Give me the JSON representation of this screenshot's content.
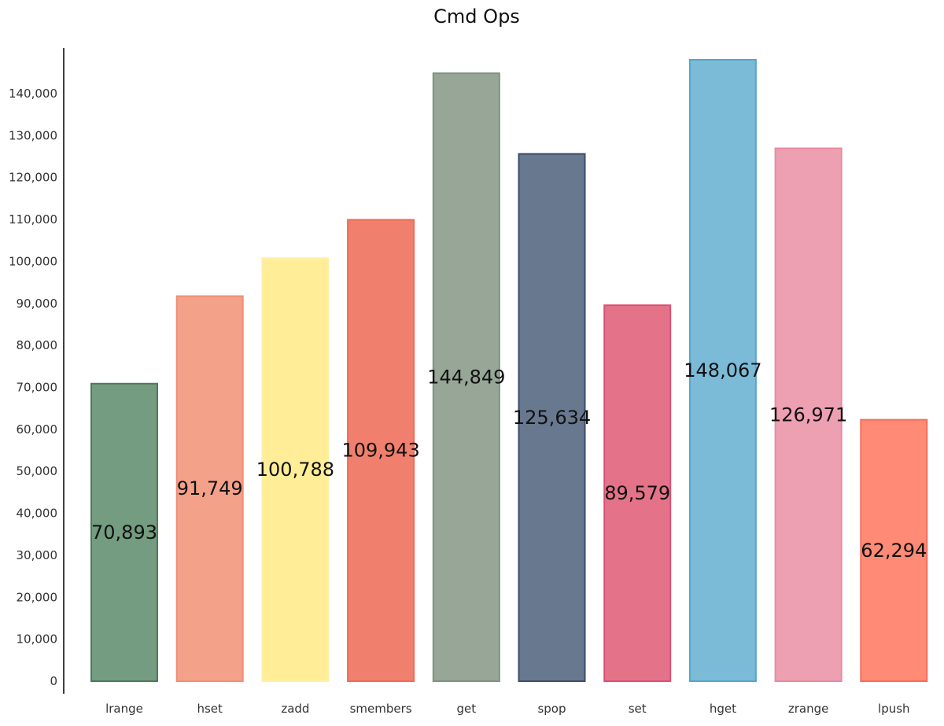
{
  "chart_data": {
    "type": "bar",
    "title": "Cmd Ops",
    "xlabel": "",
    "ylabel": "",
    "categories": [
      "lrange",
      "hset",
      "zadd",
      "smembers",
      "get",
      "spop",
      "set",
      "hget",
      "zrange",
      "lpush"
    ],
    "values": [
      70893,
      91749,
      100788,
      109943,
      144849,
      125634,
      89579,
      148067,
      126971,
      62294
    ],
    "value_labels": [
      "70,893",
      "91,749",
      "100,788",
      "109,943",
      "144,849",
      "125,634",
      "89,579",
      "148,067",
      "126,971",
      "62,294"
    ],
    "yticks": [
      0,
      10000,
      20000,
      30000,
      40000,
      50000,
      60000,
      70000,
      80000,
      90000,
      100000,
      110000,
      120000,
      130000,
      140000
    ],
    "ytick_labels": [
      "0",
      "10,000",
      "20,000",
      "30,000",
      "40,000",
      "50,000",
      "60,000",
      "70,000",
      "80,000",
      "90,000",
      "100,000",
      "110,000",
      "120,000",
      "130,000",
      "140,000"
    ],
    "ylim": [
      0,
      148067
    ],
    "grid": false,
    "legend": "none",
    "colors": [
      "#739c80",
      "#f4a18a",
      "#ffee97",
      "#f0806d",
      "#97a697",
      "#68788f",
      "#e4738a",
      "#7bbbd8",
      "#eea0b3",
      "#ff8a76"
    ],
    "edge_colors": [
      "#4f7a57",
      "#f08d77",
      "#fff0a5",
      "#ee6b58",
      "#7f917f",
      "#3c4d6c",
      "#d85173",
      "#57a5c9",
      "#e88aa0",
      "#f56f5b"
    ]
  }
}
